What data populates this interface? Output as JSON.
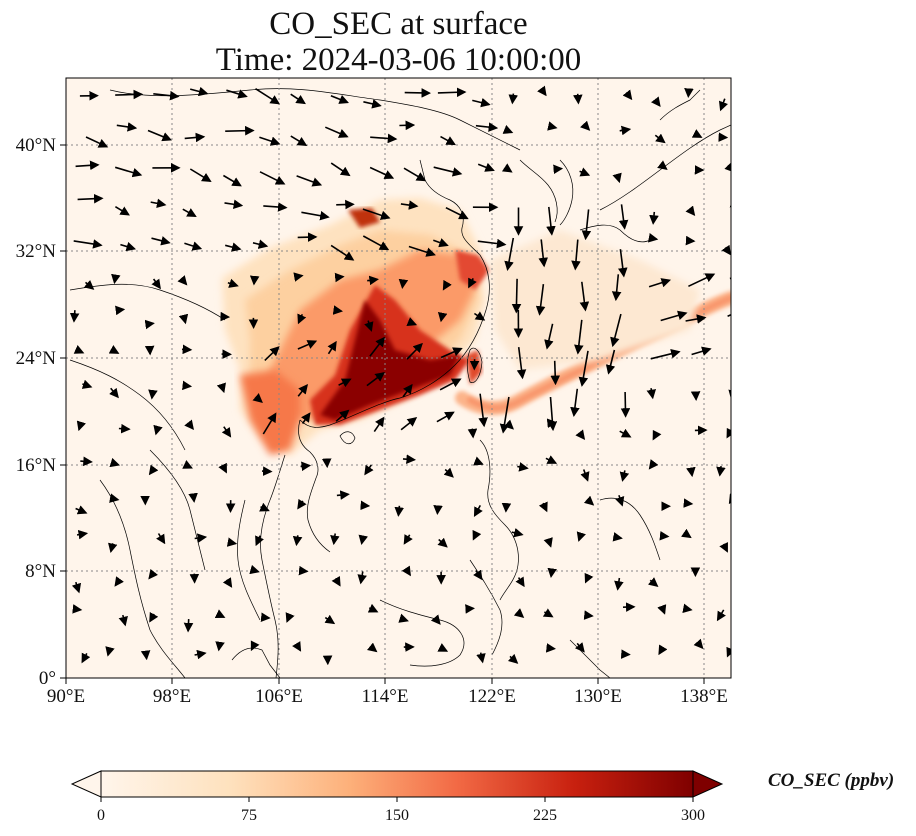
{
  "title_line1": "CO_SEC at surface",
  "title_line2": "Time: 2024-03-06 10:00:00",
  "lon_ticks": [
    "90°E",
    "98°E",
    "106°E",
    "114°E",
    "122°E",
    "130°E",
    "138°E"
  ],
  "lat_ticks": [
    "0°",
    "8°N",
    "16°N",
    "24°N",
    "32°N",
    "40°N"
  ],
  "colorbar": {
    "label": "CO_SEC (ppbv)",
    "ticks": [
      "0",
      "75",
      "150",
      "225",
      "300"
    ],
    "range": [
      0,
      300
    ],
    "colors": [
      "#fff5eb",
      "#fdd3a3",
      "#fc9a6b",
      "#e34a33",
      "#b30000",
      "#7f0000"
    ],
    "extend": "both"
  },
  "map": {
    "projection": "PlateCarree",
    "lon_range": [
      90,
      140
    ],
    "lat_range": [
      0,
      45
    ],
    "gridlines": "dotted",
    "field": "CO_SEC",
    "vectors": "wind"
  }
}
